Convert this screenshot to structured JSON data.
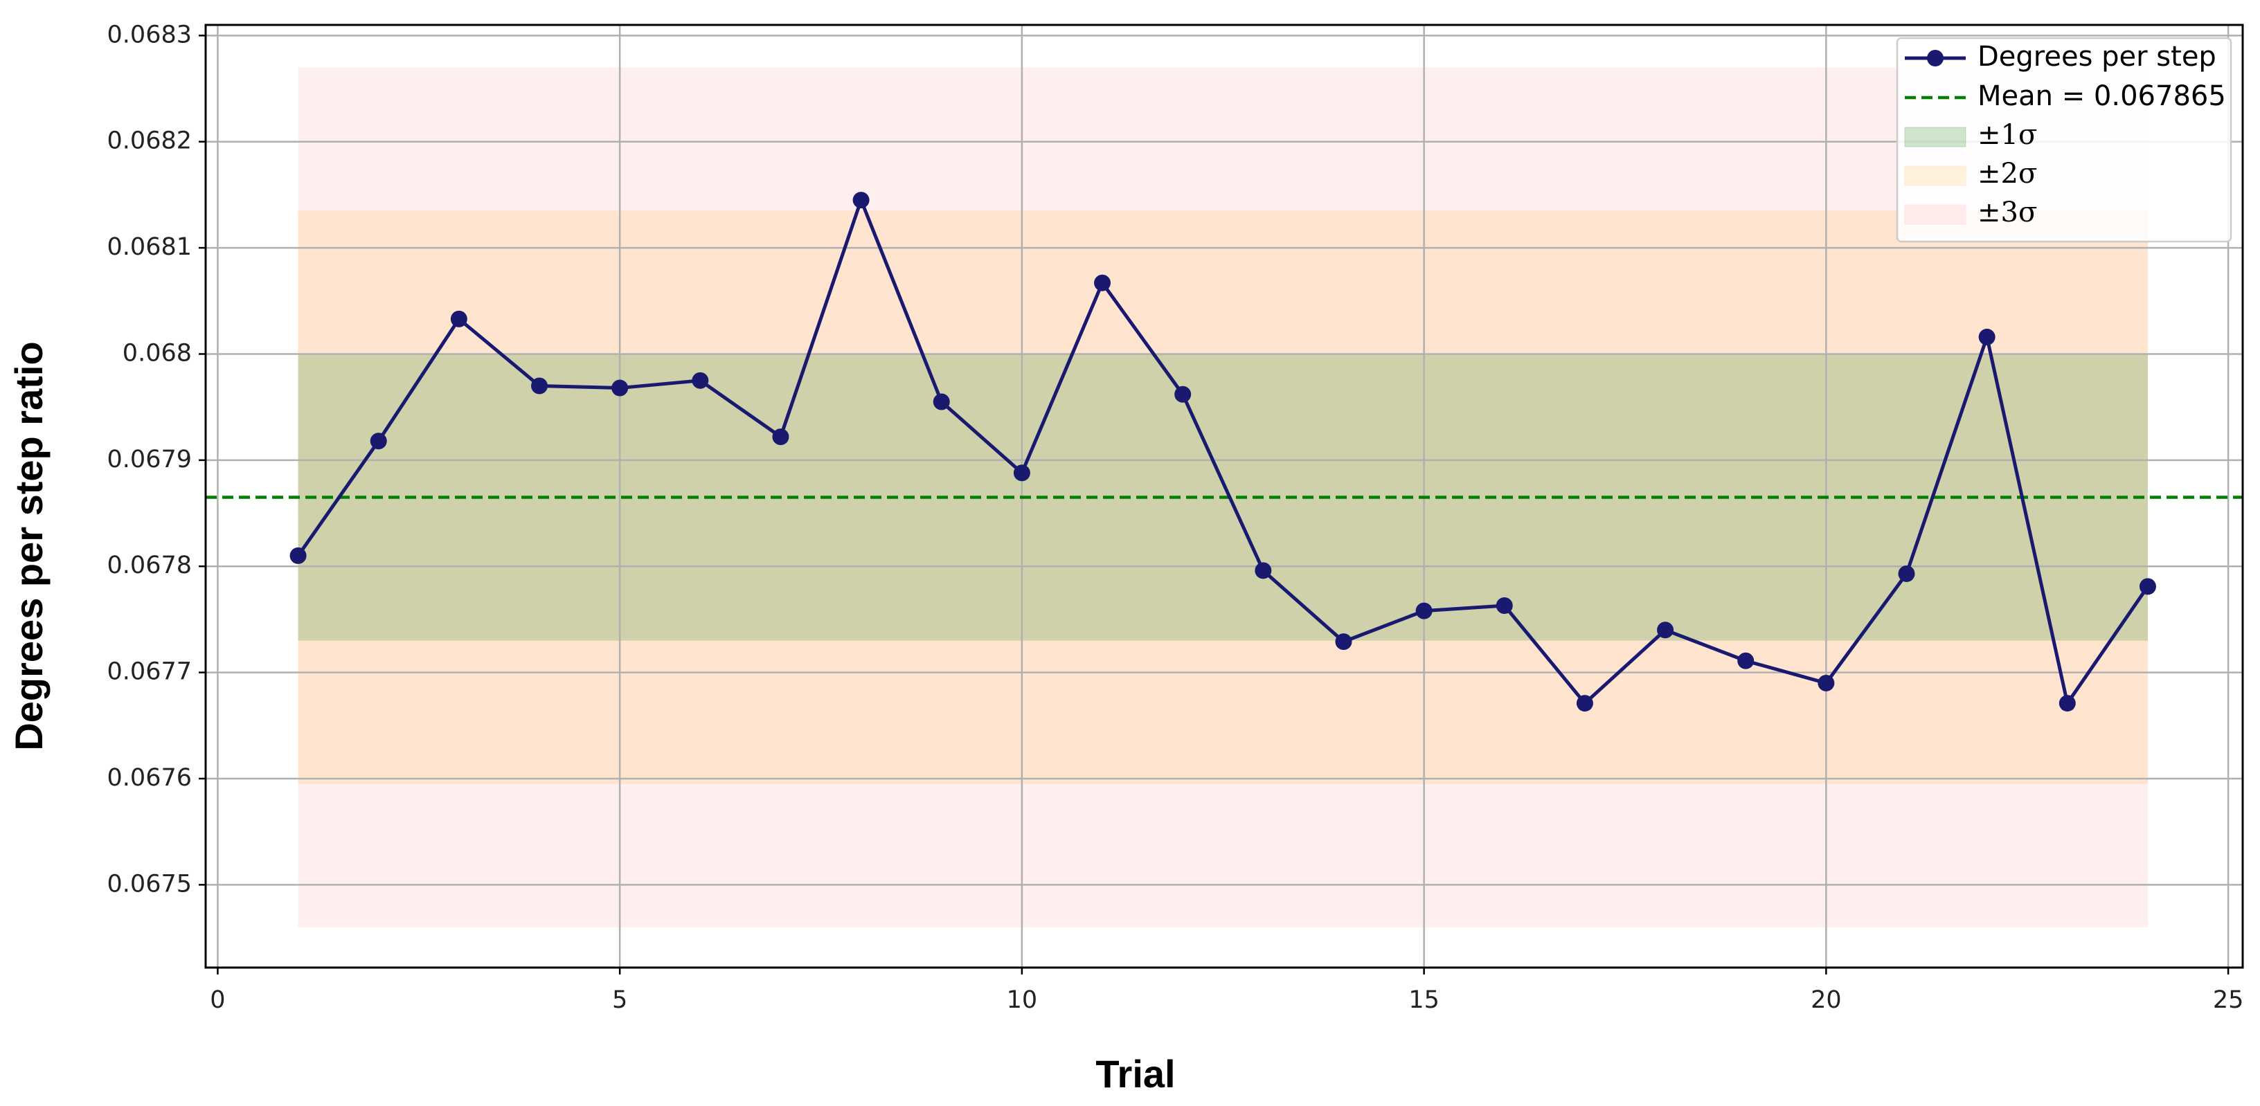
{
  "chart_data": {
    "type": "line",
    "x_label": "Trial",
    "y_label": "Degrees per step ratio",
    "x": [
      1,
      2,
      3,
      4,
      5,
      6,
      7,
      8,
      9,
      10,
      11,
      12,
      13,
      14,
      15,
      16,
      17,
      18,
      19,
      20,
      21,
      22,
      23,
      24
    ],
    "series": [
      {
        "name": "Degrees per step",
        "color": "#191970",
        "values": [
          0.06781,
          0.067918,
          0.068033,
          0.06797,
          0.067968,
          0.067975,
          0.067922,
          0.068145,
          0.067955,
          0.067888,
          0.068067,
          0.067962,
          0.067796,
          0.067729,
          0.067758,
          0.067763,
          0.067671,
          0.06774,
          0.067711,
          0.06769,
          0.067793,
          0.068016,
          0.067671,
          0.067781
        ]
      }
    ],
    "mean": {
      "name": "Mean = 0.067865",
      "value": 0.067865,
      "color": "#008000"
    },
    "bands": [
      {
        "name": "±1σ",
        "lower": 0.06773,
        "upper": 0.068,
        "color": "rgba(34,139,34,0.22)"
      },
      {
        "name": "±2σ",
        "lower": 0.067595,
        "upper": 0.068135,
        "color": "rgba(255,165,0,0.13)"
      },
      {
        "name": "±3σ",
        "lower": 0.06746,
        "upper": 0.06827,
        "color": "rgba(255,130,130,0.13)"
      }
    ],
    "xlim": [
      -0.15,
      25.18
    ],
    "ylim": [
      0.067422,
      0.06831
    ],
    "xticks": [
      0,
      5,
      10,
      15,
      20,
      25
    ],
    "yticks": [
      0.0675,
      0.0676,
      0.0677,
      0.0678,
      0.0679,
      0.068,
      0.0681,
      0.0682,
      0.0683
    ],
    "grid": true,
    "legend": "upper right"
  }
}
